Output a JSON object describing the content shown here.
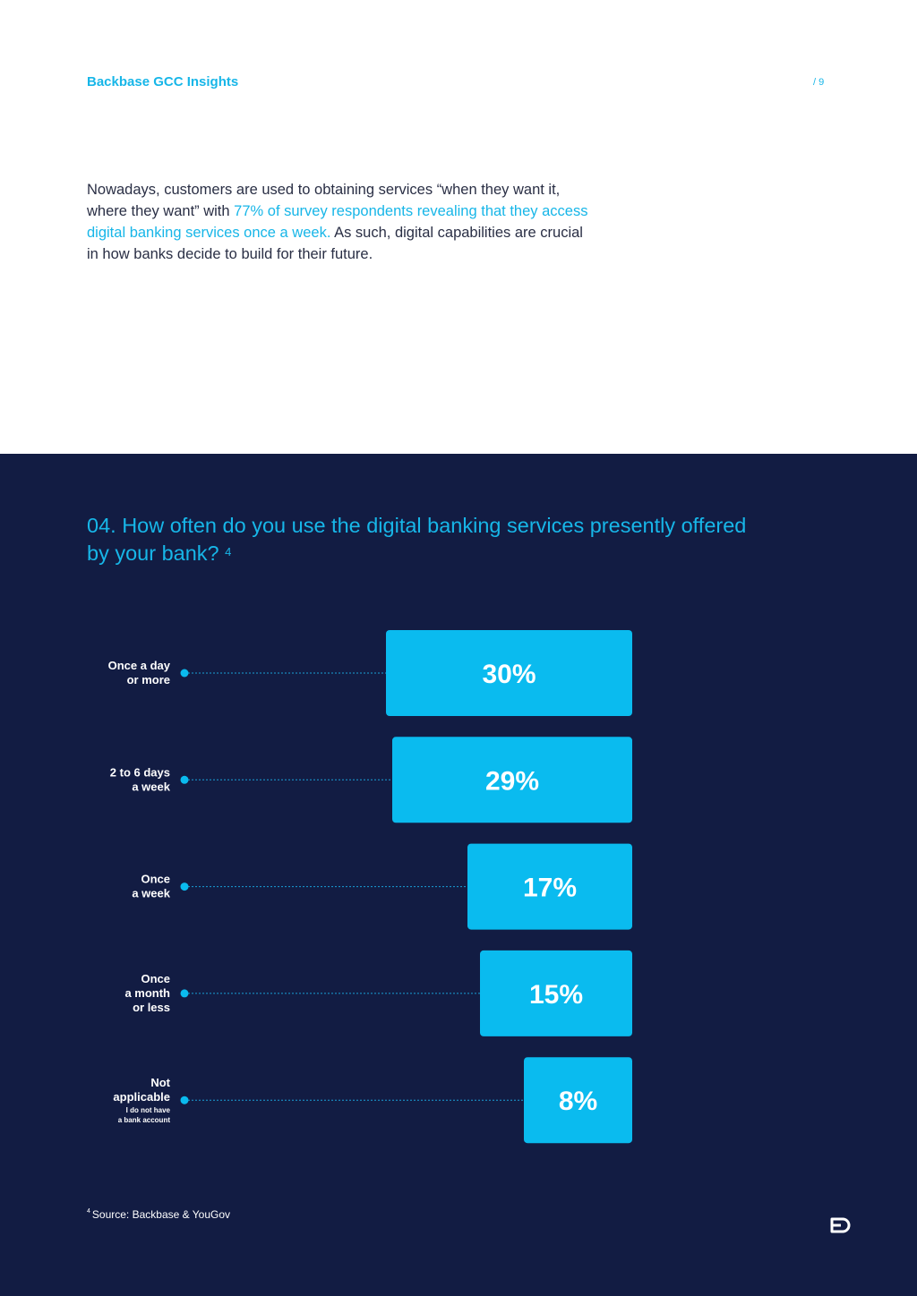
{
  "header": {
    "brand": "Backbase GCC Insights",
    "page_number": "/ 9"
  },
  "intro": {
    "text_before": "Nowadays, customers are used to obtaining services “when they want it, where they want” with ",
    "highlight": "77% of survey respondents revealing that they access digital banking services once a week.",
    "text_after": " As such, digital capabilities are crucial in how banks decide to build for their future."
  },
  "question": {
    "title": "04. How often do you use the digital banking services presently offered by your bank?",
    "footnote_ref": "4"
  },
  "chart_data": {
    "type": "bar",
    "orientation": "horizontal",
    "unit": "%",
    "categories": [
      {
        "lines": [
          "Once a day",
          "or more"
        ],
        "sub": []
      },
      {
        "lines": [
          "2 to 6 days",
          "a week"
        ],
        "sub": []
      },
      {
        "lines": [
          "Once",
          "a week"
        ],
        "sub": []
      },
      {
        "lines": [
          "Once",
          "a month",
          "or less"
        ],
        "sub": []
      },
      {
        "lines": [
          "Not",
          "applicable"
        ],
        "sub": [
          "I do not have",
          "a bank account"
        ]
      }
    ],
    "values": [
      30,
      29,
      17,
      15,
      8
    ],
    "value_labels": [
      "30%",
      "29%",
      "17%",
      "15%",
      "8%"
    ],
    "colors": {
      "bar": "#0abbef",
      "dot": "#0abbef",
      "leader": "#1a9fd6",
      "label": "#ffffff"
    }
  },
  "footnote": {
    "number": "4",
    "text": "Source: Backbase & YouGov"
  },
  "logo": {
    "icon": "backbase-logo-icon"
  },
  "colors": {
    "accent": "#17b6e8",
    "background_dark": "#121c43"
  }
}
